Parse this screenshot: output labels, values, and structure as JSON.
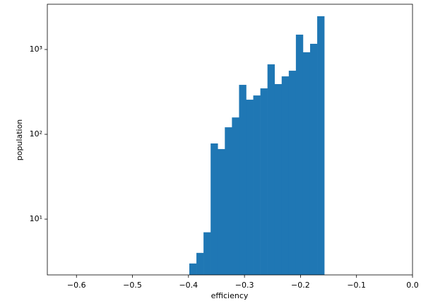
{
  "chart_data": {
    "type": "histogram",
    "x_label": "efficiency",
    "y_label": "population",
    "color": "#1f77b4",
    "log_y": true,
    "bins": [
      -0.3985,
      -0.385816,
      -0.373132,
      -0.360447,
      -0.347763,
      -0.335079,
      -0.322395,
      -0.309711,
      -0.297026,
      -0.284342,
      -0.271658,
      -0.258974,
      -0.246289,
      -0.233605,
      -0.220921,
      -0.208237,
      -0.195553,
      -0.182868,
      -0.170184,
      -0.1575
    ],
    "counts": [
      3,
      4,
      7,
      78,
      67,
      121,
      158,
      383,
      256,
      287,
      348,
      668,
      391,
      482,
      562,
      1496,
      927,
      1167,
      2465
    ],
    "xlim": [
      -0.652,
      0
    ],
    "ylim": [
      2.2,
      3415
    ],
    "xticks": [
      {
        "value": -0.6,
        "label": "−0.6"
      },
      {
        "value": -0.5,
        "label": "−0.5"
      },
      {
        "value": -0.4,
        "label": "−0.4"
      },
      {
        "value": -0.3,
        "label": "−0.3"
      },
      {
        "value": -0.2,
        "label": "−0.2"
      },
      {
        "value": -0.1,
        "label": "−0.1"
      },
      {
        "value": 0,
        "label": "0.0"
      }
    ],
    "yticks": [
      {
        "value": 10,
        "label": "10¹"
      },
      {
        "value": 100,
        "label": "10²"
      },
      {
        "value": 1000,
        "label": "10³"
      }
    ]
  }
}
